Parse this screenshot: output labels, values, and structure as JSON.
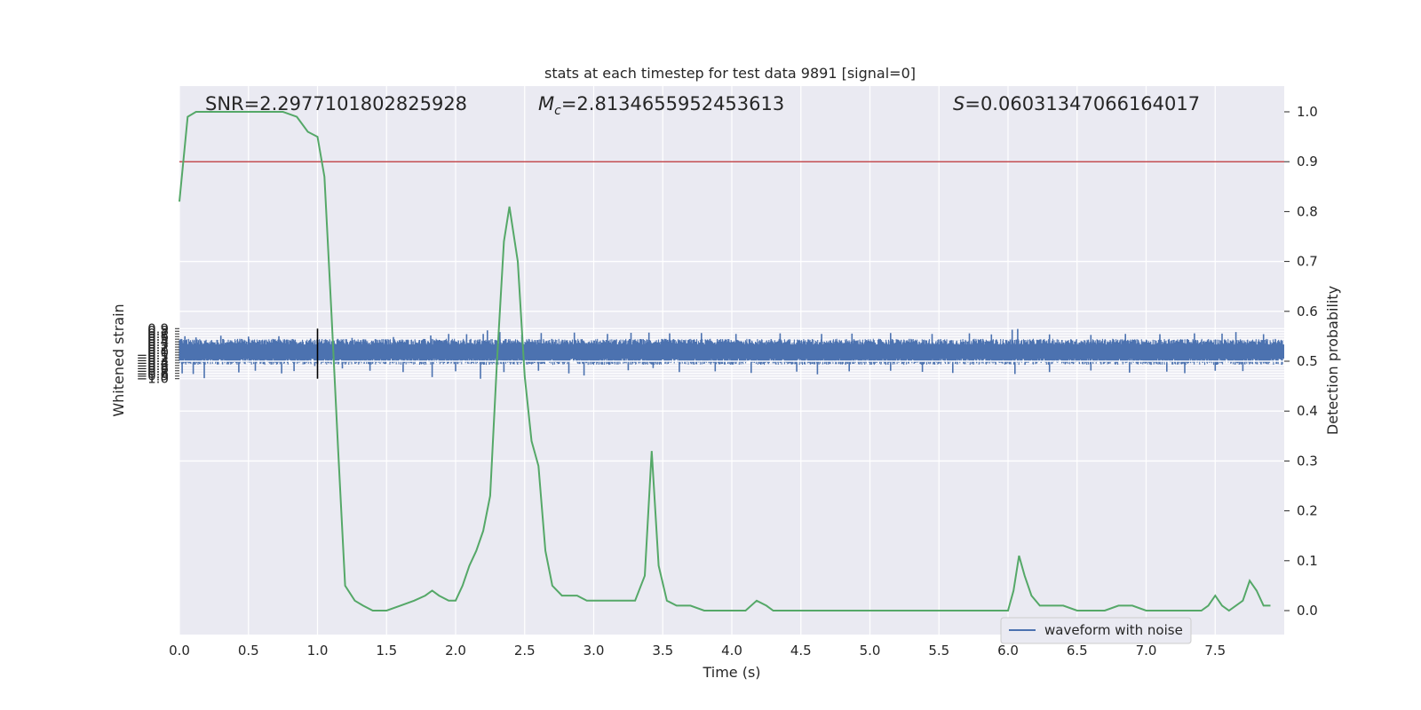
{
  "chart_data": {
    "type": "line",
    "title": "stats at each timestep for test data 9891 [signal=0]",
    "xlabel": "Time (s)",
    "ylabel_left": "Whitened strain",
    "ylabel_right": "Detection probability",
    "xlim": [
      0,
      8
    ],
    "ylim_left": [
      -1.0,
      0.95
    ],
    "ylim_right": [
      0.0,
      1.0
    ],
    "x_ticks": [
      "0.0",
      "0.5",
      "1.0",
      "1.5",
      "2.0",
      "2.5",
      "3.0",
      "3.5",
      "4.0",
      "4.5",
      "5.0",
      "5.5",
      "6.0",
      "6.5",
      "7.0",
      "7.5"
    ],
    "y_ticks_left": [
      "0.9",
      "0.8",
      "0.7",
      "0.6",
      "0.5",
      "0.4",
      "0.3",
      "0.2",
      "0.1",
      "0.0",
      "−0.1",
      "−0.2",
      "−0.3",
      "−0.4",
      "−0.5",
      "−0.6",
      "−0.7",
      "−0.8",
      "−0.9",
      "−1.0"
    ],
    "y_ticks_right": [
      "1.0",
      "0.9",
      "0.8",
      "0.7",
      "0.6",
      "0.5",
      "0.4",
      "0.3",
      "0.2",
      "0.1",
      "0.0"
    ],
    "grid": true,
    "legend_position": "bottom-right",
    "annotations": {
      "snr": "SNR=2.2977101802825928",
      "mc_symbol": "M",
      "mc_sub": "c",
      "mc_value": "=2.8134655952453613",
      "s_symbol": "S",
      "s_value": "=0.06031347066164017"
    },
    "threshold": {
      "axis": "right",
      "value": 0.9,
      "color": "#c44e52"
    },
    "marker_line": {
      "x": 1.0,
      "y_from": -1.0,
      "y_to": 0.9,
      "color": "#000000"
    },
    "series": [
      {
        "name": "waveform with noise",
        "axis": "left",
        "color": "#4c72b0",
        "style": "dense noise trace",
        "envelope_typical": [
          -0.45,
          0.5
        ],
        "spikes_high": [
          [
            0.04,
            0.61
          ],
          [
            0.12,
            0.57
          ],
          [
            0.3,
            0.63
          ],
          [
            0.5,
            0.6
          ],
          [
            0.72,
            0.61
          ],
          [
            0.95,
            0.52
          ],
          [
            1.25,
            0.55
          ],
          [
            1.55,
            0.58
          ],
          [
            1.82,
            0.64
          ],
          [
            1.95,
            0.7
          ],
          [
            2.08,
            0.69
          ],
          [
            2.2,
            0.7
          ],
          [
            2.23,
            0.83
          ],
          [
            2.32,
            0.77
          ],
          [
            2.48,
            0.67
          ],
          [
            2.62,
            0.73
          ],
          [
            2.86,
            0.75
          ],
          [
            3.1,
            0.7
          ],
          [
            3.27,
            0.74
          ],
          [
            3.4,
            0.75
          ],
          [
            3.55,
            0.72
          ],
          [
            3.78,
            0.73
          ],
          [
            4.03,
            0.7
          ],
          [
            4.35,
            0.72
          ],
          [
            4.65,
            0.7
          ],
          [
            4.87,
            0.71
          ],
          [
            5.15,
            0.73
          ],
          [
            5.45,
            0.7
          ],
          [
            5.72,
            0.72
          ],
          [
            5.88,
            0.68
          ],
          [
            6.03,
            0.86
          ],
          [
            6.07,
            0.89
          ],
          [
            6.3,
            0.68
          ],
          [
            6.6,
            0.66
          ],
          [
            6.85,
            0.7
          ],
          [
            7.1,
            0.69
          ],
          [
            7.35,
            0.72
          ],
          [
            7.55,
            0.71
          ],
          [
            7.65,
            0.77
          ],
          [
            7.85,
            0.69
          ]
        ],
        "spikes_low": [
          [
            0.02,
            -0.8
          ],
          [
            0.1,
            -0.82
          ],
          [
            0.18,
            -0.98
          ],
          [
            0.43,
            -0.76
          ],
          [
            0.55,
            -0.7
          ],
          [
            0.74,
            -0.8
          ],
          [
            0.83,
            -0.71
          ],
          [
            0.98,
            -0.52
          ],
          [
            1.18,
            -0.61
          ],
          [
            1.38,
            -0.7
          ],
          [
            1.62,
            -0.75
          ],
          [
            1.83,
            -0.94
          ],
          [
            2.0,
            -0.72
          ],
          [
            2.18,
            -1.0
          ],
          [
            2.35,
            -0.75
          ],
          [
            2.6,
            -0.7
          ],
          [
            2.82,
            -0.8
          ],
          [
            2.93,
            -0.88
          ],
          [
            3.25,
            -0.68
          ],
          [
            3.43,
            -0.6
          ],
          [
            3.62,
            -0.75
          ],
          [
            3.88,
            -0.72
          ],
          [
            4.14,
            -0.78
          ],
          [
            4.47,
            -0.73
          ],
          [
            4.62,
            -0.83
          ],
          [
            4.85,
            -0.72
          ],
          [
            5.15,
            -0.7
          ],
          [
            5.38,
            -0.74
          ],
          [
            5.6,
            -0.78
          ],
          [
            6.05,
            -0.82
          ],
          [
            6.3,
            -0.75
          ],
          [
            6.6,
            -0.69
          ],
          [
            6.88,
            -0.77
          ],
          [
            7.15,
            -0.73
          ],
          [
            7.28,
            -0.79
          ],
          [
            7.5,
            -0.7
          ],
          [
            7.7,
            -0.71
          ]
        ]
      },
      {
        "name": "",
        "axis": "right",
        "color": "#55a868",
        "x": [
          0.0,
          0.06,
          0.12,
          0.2,
          0.3,
          0.45,
          0.6,
          0.75,
          0.85,
          0.93,
          1.0,
          1.05,
          1.1,
          1.15,
          1.2,
          1.27,
          1.33,
          1.4,
          1.5,
          1.6,
          1.7,
          1.78,
          1.83,
          1.88,
          1.95,
          2.0,
          2.05,
          2.1,
          2.15,
          2.2,
          2.25,
          2.3,
          2.35,
          2.39,
          2.45,
          2.5,
          2.55,
          2.6,
          2.65,
          2.7,
          2.77,
          2.83,
          2.88,
          2.95,
          3.0,
          3.1,
          3.2,
          3.3,
          3.37,
          3.42,
          3.47,
          3.53,
          3.6,
          3.7,
          3.8,
          3.9,
          4.0,
          4.1,
          4.18,
          4.25,
          4.3,
          4.4,
          4.5,
          4.6,
          4.7,
          4.8,
          4.9,
          5.0,
          5.1,
          5.2,
          5.3,
          5.4,
          5.5,
          5.6,
          5.7,
          5.8,
          5.9,
          6.0,
          6.04,
          6.08,
          6.12,
          6.17,
          6.23,
          6.3,
          6.4,
          6.5,
          6.6,
          6.7,
          6.8,
          6.9,
          7.0,
          7.1,
          7.2,
          7.3,
          7.4,
          7.45,
          7.5,
          7.55,
          7.6,
          7.65,
          7.7,
          7.75,
          7.8,
          7.85,
          7.9
        ],
        "values": [
          0.82,
          0.99,
          1.0,
          1.0,
          1.0,
          1.0,
          1.0,
          1.0,
          0.99,
          0.96,
          0.95,
          0.87,
          0.6,
          0.32,
          0.05,
          0.02,
          0.01,
          0.0,
          0.0,
          0.01,
          0.02,
          0.03,
          0.04,
          0.03,
          0.02,
          0.02,
          0.05,
          0.09,
          0.12,
          0.16,
          0.23,
          0.5,
          0.74,
          0.81,
          0.7,
          0.47,
          0.34,
          0.29,
          0.12,
          0.05,
          0.03,
          0.03,
          0.03,
          0.02,
          0.02,
          0.02,
          0.02,
          0.02,
          0.07,
          0.32,
          0.09,
          0.02,
          0.01,
          0.01,
          0.0,
          0.0,
          0.0,
          0.0,
          0.02,
          0.01,
          0.0,
          0.0,
          0.0,
          0.0,
          0.0,
          0.0,
          0.0,
          0.0,
          0.0,
          0.0,
          0.0,
          0.0,
          0.0,
          0.0,
          0.0,
          0.0,
          0.0,
          0.0,
          0.04,
          0.11,
          0.07,
          0.03,
          0.01,
          0.01,
          0.01,
          0.0,
          0.0,
          0.0,
          0.01,
          0.01,
          0.0,
          0.0,
          0.0,
          0.0,
          0.0,
          0.01,
          0.03,
          0.01,
          0.0,
          0.01,
          0.02,
          0.06,
          0.04,
          0.01,
          0.01
        ]
      }
    ]
  }
}
